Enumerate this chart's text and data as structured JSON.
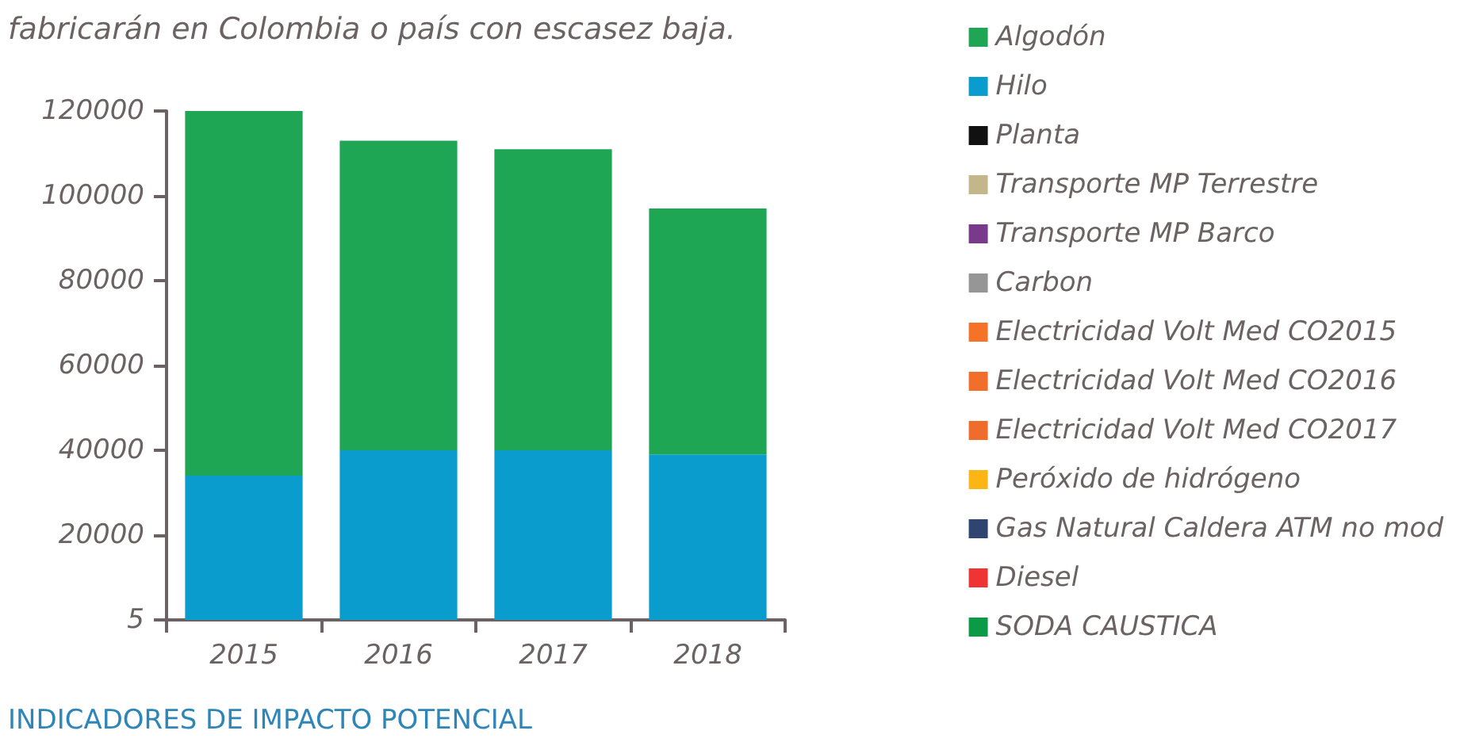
{
  "chart_data": {
    "type": "bar",
    "title": "fabricarán en Colombia o país con escasez baja.",
    "annotations": [
      "INDICADORES DE IMPACTO POTENCIAL"
    ],
    "categories": [
      "2015",
      "2016",
      "2017",
      "2018"
    ],
    "stacked": true,
    "legend": "right",
    "grid": false,
    "ylim": [
      5,
      120000
    ],
    "yticks": [
      5,
      20000,
      40000,
      60000,
      80000,
      100000,
      120000
    ],
    "series": [
      {
        "name": "Hilo",
        "color": "#0a9ccc",
        "values": [
          34000,
          40000,
          40000,
          39000
        ]
      },
      {
        "name": "Algodón",
        "color": "#1fa654",
        "values": [
          86000,
          73000,
          71000,
          58000
        ]
      },
      {
        "name": "Planta",
        "color": "#111111",
        "values": [
          null,
          null,
          null,
          null
        ]
      },
      {
        "name": "Transporte MP Terrestre",
        "color": "#c3b68a",
        "values": [
          null,
          null,
          null,
          null
        ]
      },
      {
        "name": "Transporte MP Barco",
        "color": "#7a3a8c",
        "values": [
          null,
          null,
          null,
          null
        ]
      },
      {
        "name": "Carbon",
        "color": "#969696",
        "values": [
          null,
          null,
          null,
          null
        ]
      },
      {
        "name": "Electricidad Volt Med CO2015",
        "color": "#f47328",
        "values": [
          null,
          null,
          null,
          null
        ]
      },
      {
        "name": "Electricidad Volt Med CO2016",
        "color": "#f26f2b",
        "values": [
          null,
          null,
          null,
          null
        ]
      },
      {
        "name": "Electricidad Volt Med CO2017",
        "color": "#f06c2a",
        "values": [
          null,
          null,
          null,
          null
        ]
      },
      {
        "name": "Peróxido de hidrógeno",
        "color": "#fbb615",
        "values": [
          null,
          null,
          null,
          null
        ]
      },
      {
        "name": "Gas Natural Caldera ATM no mod",
        "color": "#2f4470",
        "values": [
          null,
          null,
          null,
          null
        ]
      },
      {
        "name": "Diesel",
        "color": "#ef3434",
        "values": [
          null,
          null,
          null,
          null
        ]
      },
      {
        "name": "SODA CAUSTICA",
        "color": "#0b9a45",
        "values": [
          null,
          null,
          null,
          null
        ]
      }
    ]
  }
}
